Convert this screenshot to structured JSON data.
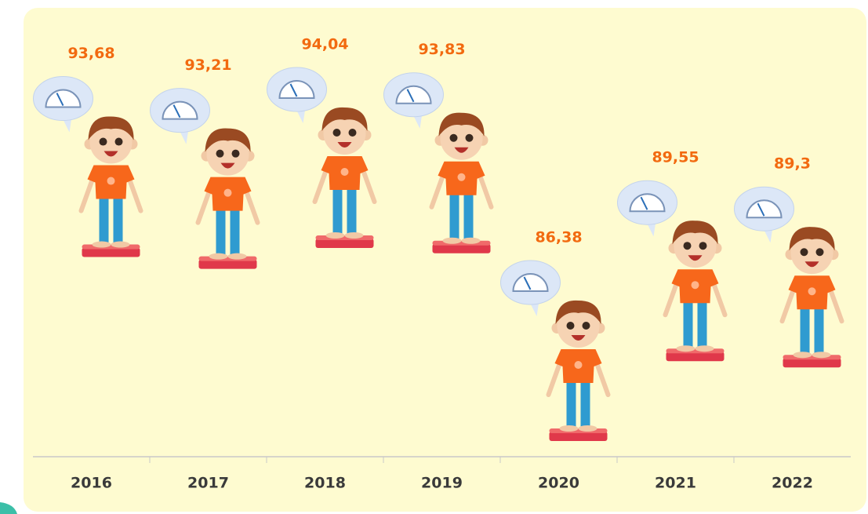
{
  "chart_data": {
    "type": "pictorial",
    "categories": [
      "2016",
      "2017",
      "2018",
      "2019",
      "2020",
      "2021",
      "2022"
    ],
    "values": [
      93.68,
      93.21,
      94.04,
      93.83,
      86.38,
      89.55,
      89.3
    ],
    "value_labels": [
      "93,68",
      "93,21",
      "94,04",
      "93,83",
      "86,38",
      "89,55",
      "89,3"
    ],
    "color": "#f26a10"
  }
}
